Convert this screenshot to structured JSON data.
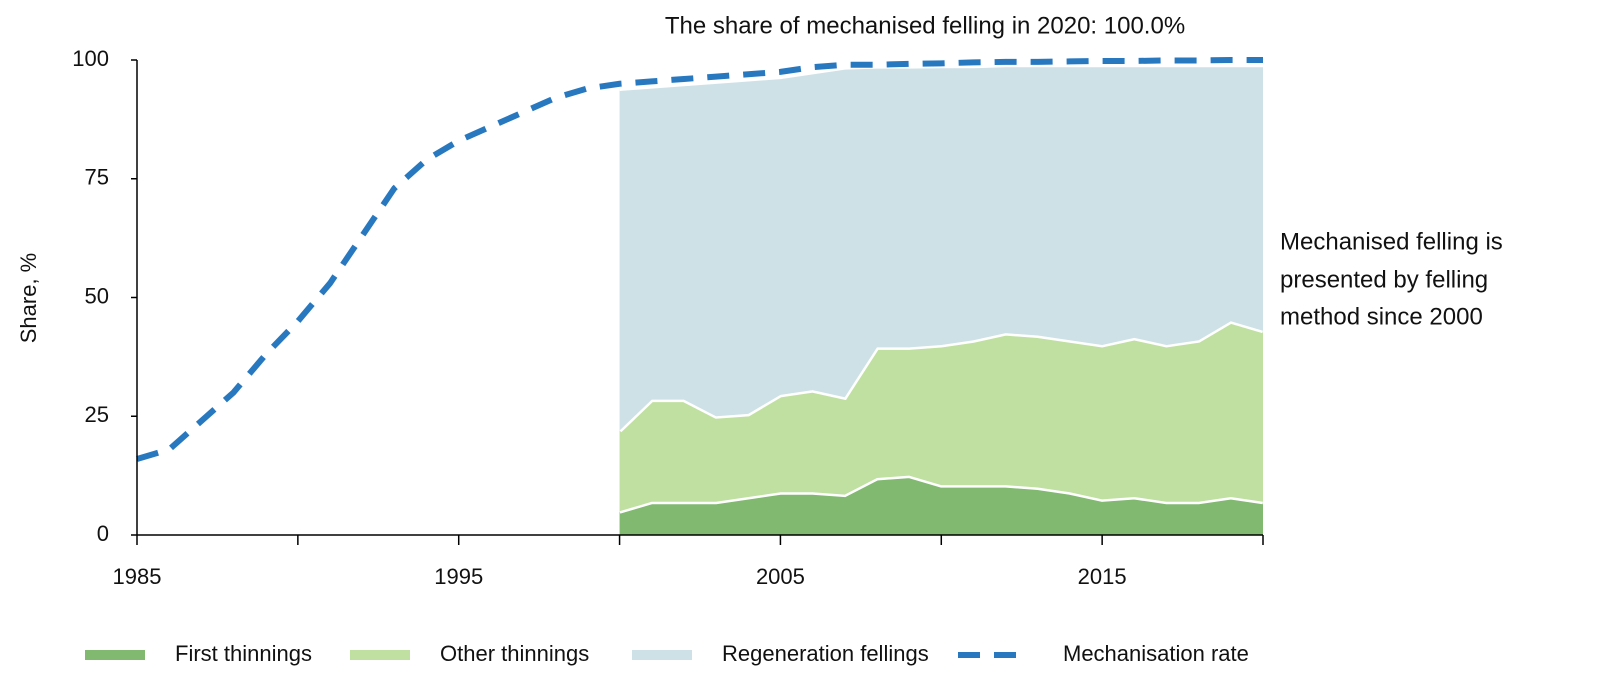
{
  "chart_data": {
    "type": "area",
    "annotation": "The share of mechanised felling in 2020: 100.0%",
    "note": [
      "Mechanised felling is",
      "presented by felling",
      "method since 2000"
    ],
    "y_label": "Share, %",
    "x": [
      1985,
      1986,
      1987,
      1988,
      1989,
      1990,
      1991,
      1992,
      1993,
      1994,
      1995,
      1996,
      1997,
      1998,
      1999,
      2000,
      2001,
      2002,
      2003,
      2004,
      2005,
      2006,
      2007,
      2008,
      2009,
      2010,
      2011,
      2012,
      2013,
      2014,
      2015,
      2016,
      2017,
      2018,
      2019,
      2020
    ],
    "xlim": [
      1985,
      2020
    ],
    "xticks": [
      1985,
      1995,
      2005,
      2015
    ],
    "xminorticks": [
      1990,
      2000,
      2010,
      2020
    ],
    "ylim": [
      0,
      100
    ],
    "yticks": [
      0,
      25,
      50,
      75,
      100
    ],
    "grid": false,
    "stacked": true,
    "legend": "bottom",
    "series": [
      {
        "name": "First thinnings",
        "type": "area",
        "color": "#80b96f",
        "values": [
          null,
          null,
          null,
          null,
          null,
          null,
          null,
          null,
          null,
          null,
          null,
          null,
          null,
          null,
          null,
          5,
          7,
          7,
          7,
          8,
          9,
          9,
          8.5,
          12,
          12.5,
          10.5,
          10.5,
          10.5,
          10,
          9,
          7.5,
          8,
          7,
          7,
          8,
          7
        ]
      },
      {
        "name": "Other thinnings",
        "type": "area",
        "color": "#bfe0a1",
        "values": [
          null,
          null,
          null,
          null,
          null,
          null,
          null,
          null,
          null,
          null,
          null,
          null,
          null,
          null,
          null,
          17,
          21.5,
          21.5,
          18,
          17.5,
          20.5,
          21.5,
          20.5,
          27.5,
          27,
          29.5,
          30.5,
          32,
          32,
          32,
          32.5,
          33.5,
          33,
          34,
          37,
          36
        ]
      },
      {
        "name": "Regeneration fellings",
        "type": "area",
        "color": "#cde1e7",
        "values": [
          null,
          null,
          null,
          null,
          null,
          null,
          null,
          null,
          null,
          null,
          null,
          null,
          null,
          null,
          null,
          72,
          66,
          66.5,
          70.5,
          70.5,
          67,
          67,
          69.5,
          59.2,
          59.2,
          58.8,
          57.8,
          56.5,
          57,
          58,
          59,
          57.5,
          59,
          58,
          54,
          56
        ]
      },
      {
        "name": "Mechanisation rate",
        "type": "line",
        "color": "#2878c0",
        "values": [
          16,
          18,
          24,
          30,
          38,
          45,
          53,
          63,
          73,
          79,
          83,
          86,
          89,
          92,
          94,
          95,
          95.5,
          96,
          96.5,
          97,
          97.5,
          98.5,
          99,
          99,
          99.2,
          99.3,
          99.5,
          99.6,
          99.6,
          99.7,
          99.8,
          99.8,
          99.9,
          99.9,
          100,
          100
        ]
      }
    ]
  }
}
